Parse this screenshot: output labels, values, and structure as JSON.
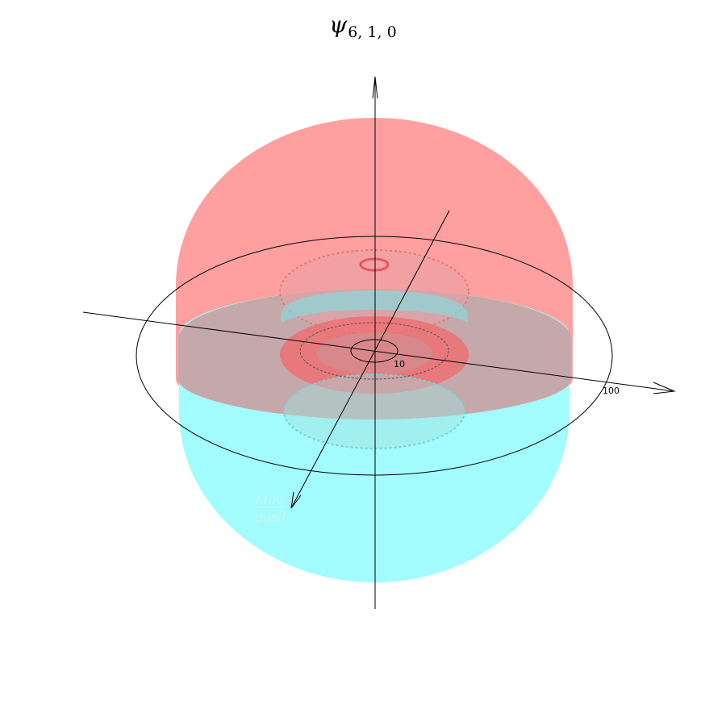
{
  "title": {
    "symbol": "ψ",
    "subscript": "6, 1, 0"
  },
  "axis_ticks": {
    "inner": "10",
    "outer": "100"
  },
  "watermark": {
    "line1": "Mov",
    "line2": "pasd"
  },
  "colors": {
    "positive_lobe": "#ff9f9f",
    "negative_lobe": "#a0fbfc",
    "overlap": "#c5a9aa",
    "inner_red": "#f26a6e",
    "inner_cyan": "#8ad7d9",
    "axis": "#000000"
  }
}
